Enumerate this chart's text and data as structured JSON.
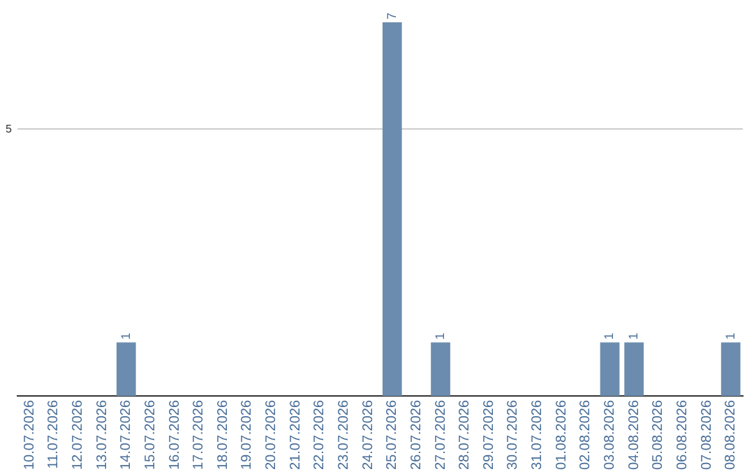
{
  "chart_data": {
    "type": "bar",
    "categories": [
      "10.07.2026",
      "11.07.2026",
      "12.07.2026",
      "13.07.2026",
      "14.07.2026",
      "15.07.2026",
      "16.07.2026",
      "17.07.2026",
      "18.07.2026",
      "19.07.2026",
      "20.07.2026",
      "21.07.2026",
      "22.07.2026",
      "23.07.2026",
      "24.07.2026",
      "25.07.2026",
      "26.07.2026",
      "27.07.2026",
      "28.07.2026",
      "29.07.2026",
      "30.07.2026",
      "31.07.2026",
      "01.08.2026",
      "02.08.2026",
      "03.08.2026",
      "04.08.2026",
      "05.08.2026",
      "06.08.2026",
      "07.08.2026",
      "08.08.2026"
    ],
    "values": [
      0,
      0,
      0,
      0,
      1,
      0,
      0,
      0,
      0,
      0,
      0,
      0,
      0,
      0,
      0,
      7,
      0,
      1,
      0,
      0,
      0,
      0,
      0,
      0,
      1,
      1,
      0,
      0,
      0,
      1
    ],
    "value_labels": [
      null,
      null,
      null,
      null,
      "1",
      null,
      null,
      null,
      null,
      null,
      null,
      null,
      null,
      null,
      null,
      "7",
      null,
      "1",
      null,
      null,
      null,
      null,
      null,
      null,
      "1",
      "1",
      null,
      null,
      null,
      "1"
    ],
    "color": "#6b8cae",
    "ylim": [
      0,
      7
    ],
    "yticks": [
      5
    ],
    "grid": "y",
    "legend": false
  }
}
